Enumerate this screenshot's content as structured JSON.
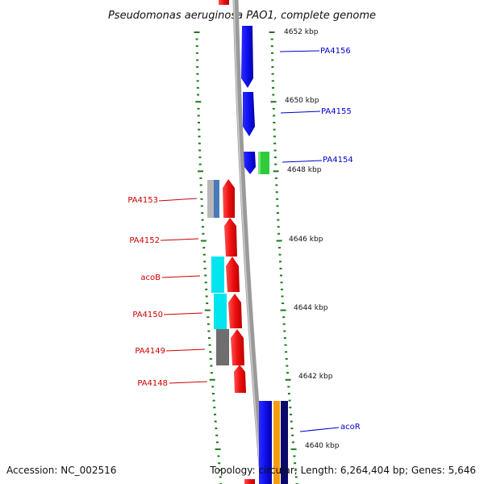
{
  "title": "Pseudomonas aeruginosa PAO1, complete genome",
  "footer": {
    "accession": "Accession: NC_002516",
    "topology": "Topology: circular; Length: 6,264,404 bp; Genes: 5,646"
  },
  "colors": {
    "backbone": "#8a8a8a",
    "forward_gene": "#0000ee",
    "reverse_gene": "#ee0000",
    "tick": "#1a7a1a",
    "forward_label": "#0000cc",
    "reverse_label": "#cc0000"
  },
  "ruler_labels": [
    {
      "id": "t4652",
      "text": "4652 kbp"
    },
    {
      "id": "t4650",
      "text": "4650 kbp"
    },
    {
      "id": "t4648",
      "text": "4648 kbp"
    },
    {
      "id": "t4646",
      "text": "4646 kbp"
    },
    {
      "id": "t4644",
      "text": "4644 kbp"
    },
    {
      "id": "t4642",
      "text": "4642 kbp"
    },
    {
      "id": "t4640",
      "text": "4640 kbp"
    }
  ],
  "gene_labels": [
    {
      "id": "PA4156",
      "text": "PA4156",
      "strand": "forward"
    },
    {
      "id": "PA4155",
      "text": "PA4155",
      "strand": "forward"
    },
    {
      "id": "PA4154",
      "text": "PA4154",
      "strand": "forward"
    },
    {
      "id": "acoR",
      "text": "acoR",
      "strand": "forward"
    },
    {
      "id": "PA4153",
      "text": "PA4153",
      "strand": "reverse"
    },
    {
      "id": "PA4152",
      "text": "PA4152",
      "strand": "reverse"
    },
    {
      "id": "acoB",
      "text": "acoB",
      "strand": "reverse"
    },
    {
      "id": "PA4150",
      "text": "PA4150",
      "strand": "reverse"
    },
    {
      "id": "PA4149",
      "text": "PA4149",
      "strand": "reverse"
    },
    {
      "id": "PA4148",
      "text": "PA4148",
      "strand": "reverse"
    }
  ]
}
